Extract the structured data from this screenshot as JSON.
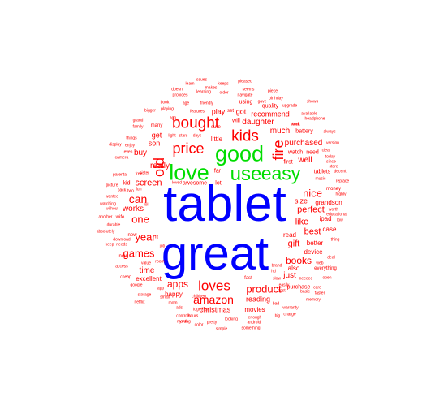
{
  "colors": {
    "large": "#0000ff",
    "medium": "#00dd00",
    "small": "#ff0000"
  },
  "words": {
    "tablet": "tablet",
    "great": "great",
    "love": "love",
    "good": "good",
    "use": "use",
    "easy": "easy",
    "old": "old",
    "fire": "fire",
    "bought": "bought",
    "kids": "kids",
    "price": "price",
    "loves": "loves",
    "amazon": "amazon",
    "product": "product",
    "apps": "apps",
    "can": "can",
    "one": "one",
    "year": "year",
    "games": "games",
    "nice": "nice",
    "books": "books",
    "perfect": "perfect",
    "gift": "gift",
    "like": "like",
    "best": "best",
    "screen": "screen",
    "really": "really",
    "works": "works",
    "buy": "buy",
    "time": "time",
    "get": "get",
    "son": "son",
    "daughter": "daughter",
    "purchased": "purchased",
    "much": "much",
    "well": "well",
    "recommend": "recommend",
    "got": "got",
    "play": "play",
    "little": "little",
    "awesome": "awesome",
    "excellent": "excellent",
    "christmas": "christmas",
    "happy": "happy",
    "reading": "reading",
    "movies": "movies",
    "just": "just",
    "also": "also",
    "size": "size",
    "grandson": "grandson",
    "read": "read",
    "device": "device",
    "ipad": "ipad",
    "case": "case",
    "better": "better",
    "purchase": "purchase",
    "first": "first",
    "watch": "watch",
    "need": "need",
    "battery": "battery",
    "quality": "quality",
    "tablets": "tablets",
    "kid": "kid",
    "using": "using",
    "will": "will",
    "far": "far",
    "lot": "lot",
    "money": "money",
    "now": "now",
    "new": "new",
    "wife": "wife",
    "fast": "fast",
    "set": "set",
    "sure": "sure",
    "many": "many",
    "easily": "easily",
    "features": "features",
    "friendly": "friendly",
    "learning": "learning",
    "pleased": "pleased",
    "seems": "seems",
    "issues": "issues",
    "keeps": "keeps",
    "makes": "makes",
    "navigate": "navigate",
    "loved": "loved",
    "parental": "parental",
    "children": "children",
    "download": "download",
    "value": "value",
    "storage": "storage",
    "netflix": "netflix",
    "google": "google",
    "cheap": "cheap",
    "access": "access",
    "another": "another",
    "absolutely": "absolutely",
    "keep": "keep",
    "needs": "needs",
    "durable": "durable",
    "wanted": "wanted",
    "without": "without",
    "watching": "watching",
    "picture": "picture",
    "enjoy": "enjoy",
    "display": "display",
    "bigger": "bigger",
    "things": "things",
    "camera": "camera",
    "even": "even",
    "grand": "grand",
    "family": "family",
    "playing": "playing",
    "book": "book",
    "provides": "provides",
    "older": "older",
    "age": "age",
    "doesn": "doesn",
    "learn": "learn",
    "month": "month",
    "together": "together",
    "charge": "charge",
    "warranty": "warranty",
    "everything": "everything",
    "card": "card",
    "memory": "memory",
    "basic": "basic",
    "needed": "needed",
    "slow": "slow",
    "web": "web",
    "deal": "deal",
    "worth": "worth",
    "highly": "highly",
    "clear": "clear",
    "upgrade": "upgrade",
    "available": "available",
    "birthday": "birthday",
    "shows": "shows",
    "piece": "piece",
    "took": "took",
    "version": "version",
    "always": "always",
    "replace": "replace",
    "work": "work",
    "bad": "bad",
    "something": "something",
    "enough": "enough",
    "android": "android",
    "looking": "looking",
    "simple": "simple",
    "young": "young",
    "color": "color",
    "pretty": "pretty",
    "controls": "controls",
    "mom": "mom",
    "thing": "thing",
    "educational": "educational",
    "low": "low",
    "another2": "app",
    "since": "since",
    "today": "today",
    "store": "store",
    "decent": "decent",
    "fun": "fun",
    "back": "back",
    "low2": "two",
    "light": "light",
    "days": "days",
    "ago": "ago",
    "happy2": "stars",
    "son2": "sister",
    "room": "room",
    "free": "free",
    "small": "small",
    "music": "music",
    "open": "open",
    "faster": "faster",
    "headphone": "headphone",
    "gave": "gave",
    "apps2": "ads",
    "cost": "cost",
    "hd": "hd",
    "big": "big",
    "hours": "hours",
    "lol": "lol",
    "fit": "fit",
    "job": "job",
    "brand": "brand"
  }
}
